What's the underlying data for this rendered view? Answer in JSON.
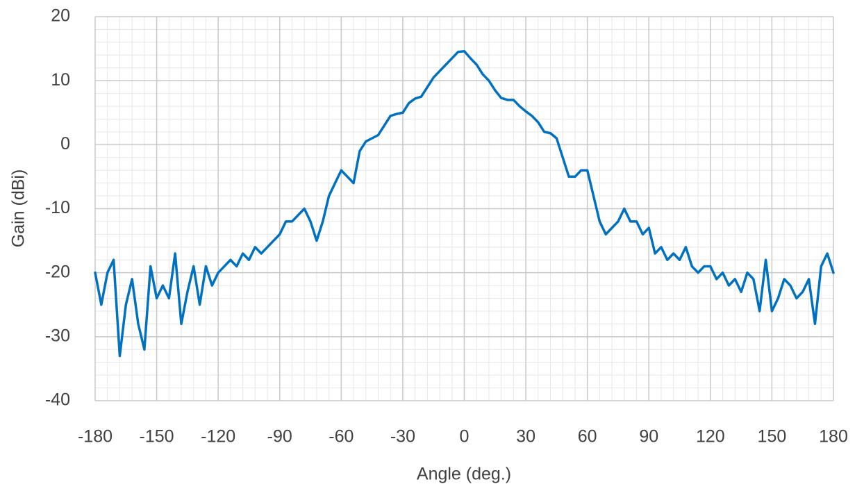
{
  "chart_data": {
    "type": "line",
    "xlabel": "Angle (deg.)",
    "ylabel": "Gain (dBi)",
    "x": [
      -180,
      -177,
      -174,
      -171,
      -168,
      -165,
      -162,
      -159,
      -156,
      -153,
      -150,
      -147,
      -144,
      -141,
      -138,
      -135,
      -132,
      -129,
      -126,
      -123,
      -120,
      -117,
      -114,
      -111,
      -108,
      -105,
      -102,
      -99,
      -96,
      -93,
      -90,
      -87,
      -84,
      -81,
      -78,
      -75,
      -72,
      -69,
      -66,
      -63,
      -60,
      -57,
      -54,
      -51,
      -48,
      -45,
      -42,
      -39,
      -36,
      -33,
      -30,
      -27,
      -24,
      -21,
      -18,
      -15,
      -12,
      -9,
      -6,
      -3,
      0,
      3,
      6,
      9,
      12,
      15,
      18,
      21,
      24,
      27,
      30,
      33,
      36,
      39,
      42,
      45,
      48,
      51,
      54,
      57,
      60,
      63,
      66,
      69,
      72,
      75,
      78,
      81,
      84,
      87,
      90,
      93,
      96,
      99,
      102,
      105,
      108,
      111,
      114,
      117,
      120,
      123,
      126,
      129,
      132,
      135,
      138,
      141,
      144,
      147,
      150,
      153,
      156,
      159,
      162,
      165,
      168,
      171,
      174,
      177,
      180
    ],
    "values": [
      -20,
      -25,
      -20,
      -18,
      -33,
      -25,
      -21,
      -28,
      -32,
      -19,
      -24,
      -22,
      -24,
      -17,
      -28,
      -23,
      -19,
      -25,
      -19,
      -22,
      -20,
      -19,
      -18,
      -19,
      -17,
      -18,
      -16,
      -17,
      -16,
      -15,
      -14,
      -12,
      -12,
      -11,
      -10,
      -12,
      -15,
      -12,
      -8,
      -6,
      -4,
      -5,
      -6,
      -1,
      0.5,
      1,
      1.5,
      3,
      4.5,
      4.8,
      5,
      6.5,
      7.2,
      7.5,
      9,
      10.5,
      11.5,
      12.5,
      13.5,
      14.5,
      14.6,
      13.5,
      12.5,
      11,
      10,
      8.5,
      7.3,
      7,
      7,
      6,
      5.2,
      4.5,
      3.5,
      2,
      1.8,
      1,
      -2,
      -5,
      -5,
      -4,
      -4,
      -8,
      -12,
      -14,
      -13,
      -12,
      -10,
      -12,
      -12,
      -14,
      -13,
      -17,
      -16,
      -18,
      -17,
      -18,
      -16,
      -19,
      -20,
      -19,
      -19,
      -21,
      -20,
      -22,
      -21,
      -23,
      -20,
      -21,
      -26,
      -18,
      -26,
      -24,
      -21,
      -22,
      -24,
      -23,
      -21,
      -28,
      -19,
      -17,
      -20
    ],
    "color": "#0070c0",
    "xlim": [
      -180,
      180
    ],
    "xticks": [
      -180,
      -150,
      -120,
      -90,
      -60,
      -30,
      0,
      30,
      60,
      90,
      120,
      150,
      180
    ],
    "ylim": [
      -40,
      20
    ],
    "yticks": [
      -40,
      -30,
      -20,
      -10,
      0,
      10,
      20
    ],
    "grid": true,
    "minor_grid": true
  }
}
